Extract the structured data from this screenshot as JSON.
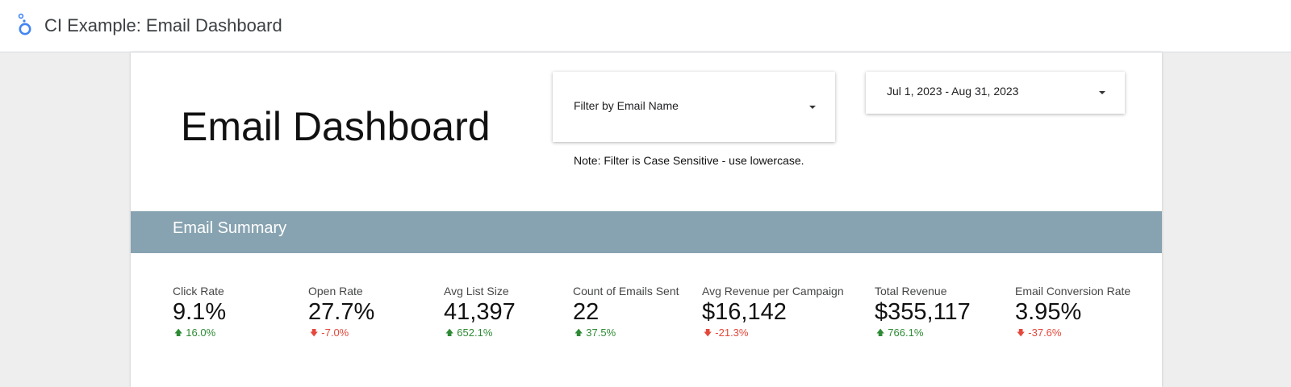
{
  "app": {
    "title": "CI Example: Email Dashboard",
    "logo_icon": "looker-studio-logo-icon"
  },
  "dashboard": {
    "title": "Email Dashboard",
    "filter": {
      "label": "Filter by Email Name",
      "icon": "dropdown-caret-icon"
    },
    "note": "Note: Filter is Case Sensitive - use lowercase.",
    "date_range": {
      "label": "Jul 1, 2023 - Aug 31, 2023",
      "icon": "dropdown-caret-icon"
    },
    "section_title": "Email Summary",
    "section_color": "#87a3b1"
  },
  "colors": {
    "up": "#2e8b35",
    "down": "#e5483b"
  },
  "kpis": [
    {
      "label": "Click Rate",
      "value": "9.1%",
      "delta": "16.0%",
      "direction": "up"
    },
    {
      "label": "Open Rate",
      "value": "27.7%",
      "delta": "-7.0%",
      "direction": "down"
    },
    {
      "label": "Avg List Size",
      "value": "41,397",
      "delta": "652.1%",
      "direction": "up"
    },
    {
      "label": "Count of Emails Sent",
      "value": "22",
      "delta": "37.5%",
      "direction": "up"
    },
    {
      "label": "Avg Revenue per Campaign",
      "value": "$16,142",
      "delta": "-21.3%",
      "direction": "down"
    },
    {
      "label": "Total Revenue",
      "value": "$355,117",
      "delta": "766.1%",
      "direction": "up"
    },
    {
      "label": "Email Conversion Rate",
      "value": "3.95%",
      "delta": "-37.6%",
      "direction": "down"
    }
  ]
}
